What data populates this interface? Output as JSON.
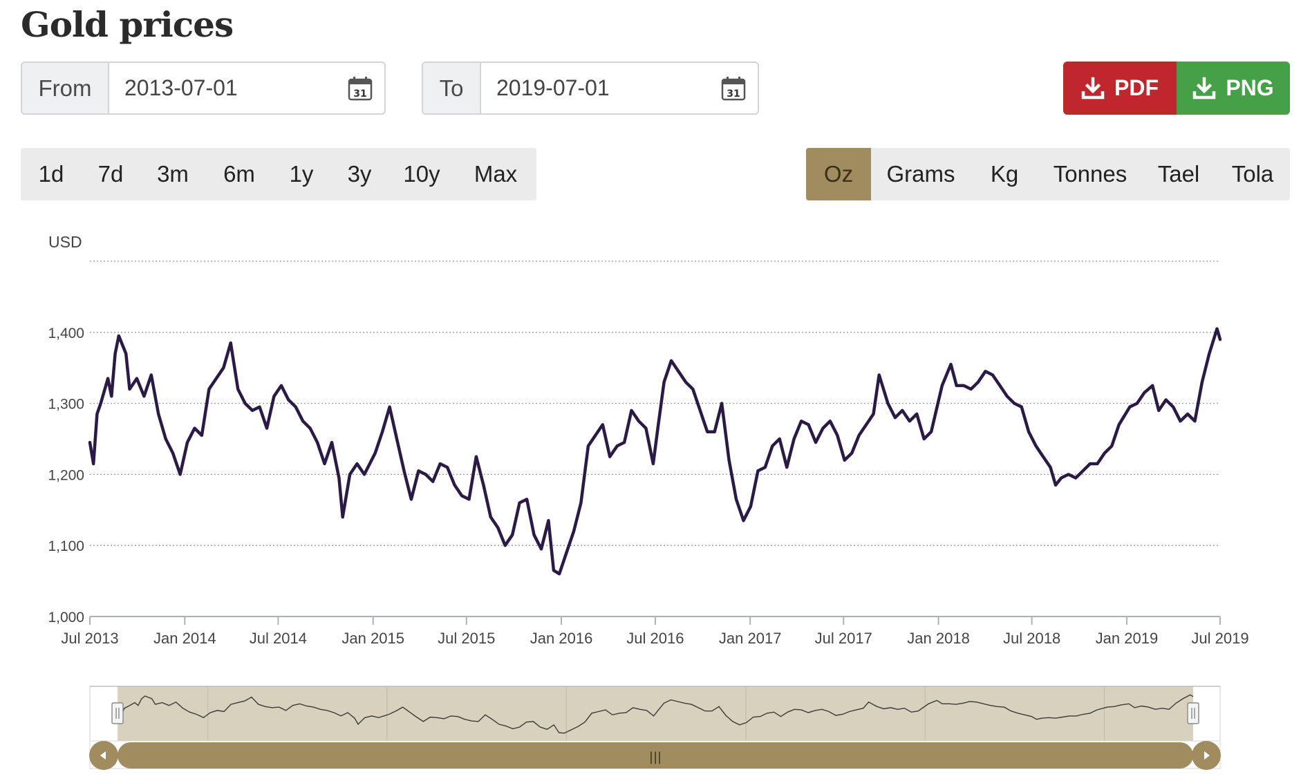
{
  "title": "Gold prices",
  "date_range": {
    "from_label": "From",
    "from_value": "2013-07-01",
    "to_label": "To",
    "to_value": "2019-07-01",
    "calendar_day": "31"
  },
  "downloads": {
    "pdf_label": "PDF",
    "png_label": "PNG"
  },
  "periods": [
    "1d",
    "7d",
    "3m",
    "6m",
    "1y",
    "3y",
    "10y",
    "Max"
  ],
  "units": [
    "Oz",
    "Grams",
    "Kg",
    "Tonnes",
    "Tael",
    "Tola"
  ],
  "active_unit": "Oz",
  "colors": {
    "line": "#2a1a45",
    "accent": "#a08c5f",
    "navigator_fill": "#d8d1bd",
    "pdf": "#c0272d",
    "png": "#45a048"
  },
  "navigator": {
    "handle_glyph": "|||"
  },
  "chart_data": {
    "type": "line",
    "ylabel": "USD",
    "ylim": [
      1000,
      1500
    ],
    "yticks": [
      1000,
      1100,
      1200,
      1300,
      1400
    ],
    "ytick_labels": [
      "1,000",
      "1,100",
      "1,200",
      "1,300",
      "1,400"
    ],
    "xlim": [
      "2013-07-01",
      "2019-07-01"
    ],
    "xticks": [
      "2013-07-01",
      "2014-01-01",
      "2014-07-01",
      "2015-01-01",
      "2015-07-01",
      "2016-01-01",
      "2016-07-01",
      "2017-01-01",
      "2017-07-01",
      "2018-01-01",
      "2018-07-01",
      "2019-01-01",
      "2019-07-01"
    ],
    "xtick_labels": [
      "Jul 2013",
      "Jan 2014",
      "Jul 2014",
      "Jan 2015",
      "Jul 2015",
      "Jan 2016",
      "Jul 2016",
      "Jan 2017",
      "Jul 2017",
      "Jan 2018",
      "Jul 2018",
      "Jan 2019",
      "Jul 2019"
    ],
    "grid": true,
    "series": [
      {
        "x": [
          "2013-07-01",
          "2013-07-08",
          "2013-07-15",
          "2013-07-22",
          "2013-08-05",
          "2013-08-12",
          "2013-08-19",
          "2013-08-26",
          "2013-09-09",
          "2013-09-16",
          "2013-09-30",
          "2013-10-14",
          "2013-10-28",
          "2013-11-11",
          "2013-11-25",
          "2013-12-09",
          "2013-12-23",
          "2014-01-06",
          "2014-01-20",
          "2014-02-03",
          "2014-02-17",
          "2014-03-03",
          "2014-03-17",
          "2014-03-31",
          "2014-04-14",
          "2014-04-28",
          "2014-05-12",
          "2014-05-26",
          "2014-06-09",
          "2014-06-23",
          "2014-07-07",
          "2014-07-21",
          "2014-08-04",
          "2014-08-18",
          "2014-09-01",
          "2014-09-15",
          "2014-09-29",
          "2014-10-13",
          "2014-10-27",
          "2014-11-03",
          "2014-11-17",
          "2014-12-01",
          "2014-12-15",
          "2015-01-05",
          "2015-01-19",
          "2015-02-02",
          "2015-02-16",
          "2015-03-02",
          "2015-03-16",
          "2015-03-30",
          "2015-04-13",
          "2015-04-27",
          "2015-05-11",
          "2015-05-25",
          "2015-06-08",
          "2015-06-22",
          "2015-07-06",
          "2015-07-20",
          "2015-08-03",
          "2015-08-17",
          "2015-08-31",
          "2015-09-14",
          "2015-09-28",
          "2015-10-12",
          "2015-10-26",
          "2015-11-09",
          "2015-11-23",
          "2015-12-07",
          "2015-12-17",
          "2015-12-28",
          "2016-01-11",
          "2016-01-25",
          "2016-02-08",
          "2016-02-22",
          "2016-03-07",
          "2016-03-21",
          "2016-04-04",
          "2016-04-18",
          "2016-05-02",
          "2016-05-16",
          "2016-05-30",
          "2016-06-13",
          "2016-06-27",
          "2016-07-06",
          "2016-07-18",
          "2016-08-01",
          "2016-08-15",
          "2016-08-29",
          "2016-09-12",
          "2016-09-26",
          "2016-10-10",
          "2016-10-24",
          "2016-11-07",
          "2016-11-21",
          "2016-12-05",
          "2016-12-19",
          "2017-01-02",
          "2017-01-16",
          "2017-01-30",
          "2017-02-13",
          "2017-02-27",
          "2017-03-13",
          "2017-03-27",
          "2017-04-10",
          "2017-04-24",
          "2017-05-08",
          "2017-05-22",
          "2017-06-05",
          "2017-06-19",
          "2017-07-03",
          "2017-07-17",
          "2017-07-31",
          "2017-08-14",
          "2017-08-28",
          "2017-09-08",
          "2017-09-25",
          "2017-10-09",
          "2017-10-23",
          "2017-11-06",
          "2017-11-20",
          "2017-12-04",
          "2017-12-18",
          "2018-01-08",
          "2018-01-25",
          "2018-02-05",
          "2018-02-19",
          "2018-03-05",
          "2018-03-19",
          "2018-04-02",
          "2018-04-16",
          "2018-04-30",
          "2018-05-14",
          "2018-05-28",
          "2018-06-11",
          "2018-06-25",
          "2018-07-09",
          "2018-07-23",
          "2018-08-06",
          "2018-08-16",
          "2018-08-27",
          "2018-09-10",
          "2018-09-24",
          "2018-10-08",
          "2018-10-22",
          "2018-11-05",
          "2018-11-19",
          "2018-12-03",
          "2018-12-17",
          "2019-01-07",
          "2019-01-21",
          "2019-02-04",
          "2019-02-20",
          "2019-03-04",
          "2019-03-18",
          "2019-04-01",
          "2019-04-15",
          "2019-04-29",
          "2019-05-13",
          "2019-05-27",
          "2019-06-10",
          "2019-06-25",
          "2019-07-01"
        ],
        "values": [
          1245,
          1215,
          1285,
          1300,
          1335,
          1310,
          1370,
          1395,
          1370,
          1320,
          1335,
          1310,
          1340,
          1285,
          1250,
          1230,
          1200,
          1245,
          1265,
          1255,
          1320,
          1335,
          1350,
          1385,
          1320,
          1300,
          1290,
          1295,
          1265,
          1310,
          1325,
          1305,
          1295,
          1275,
          1265,
          1245,
          1215,
          1245,
          1195,
          1140,
          1200,
          1215,
          1200,
          1230,
          1260,
          1295,
          1250,
          1205,
          1165,
          1205,
          1200,
          1190,
          1215,
          1210,
          1185,
          1170,
          1165,
          1225,
          1185,
          1140,
          1125,
          1100,
          1115,
          1160,
          1165,
          1115,
          1095,
          1135,
          1065,
          1060,
          1090,
          1120,
          1160,
          1240,
          1255,
          1270,
          1225,
          1240,
          1245,
          1290,
          1275,
          1265,
          1215,
          1265,
          1330,
          1360,
          1345,
          1330,
          1320,
          1290,
          1260,
          1260,
          1300,
          1220,
          1165,
          1135,
          1155,
          1205,
          1210,
          1240,
          1250,
          1210,
          1250,
          1275,
          1270,
          1245,
          1265,
          1275,
          1255,
          1220,
          1230,
          1255,
          1270,
          1285,
          1340,
          1300,
          1280,
          1290,
          1275,
          1285,
          1250,
          1260,
          1325,
          1355,
          1325,
          1325,
          1320,
          1330,
          1345,
          1340,
          1325,
          1310,
          1300,
          1295,
          1260,
          1240,
          1225,
          1210,
          1185,
          1195,
          1200,
          1195,
          1205,
          1215,
          1215,
          1230,
          1240,
          1270,
          1295,
          1300,
          1315,
          1325,
          1290,
          1305,
          1295,
          1275,
          1285,
          1275,
          1330,
          1370,
          1405,
          1390
        ]
      }
    ]
  }
}
